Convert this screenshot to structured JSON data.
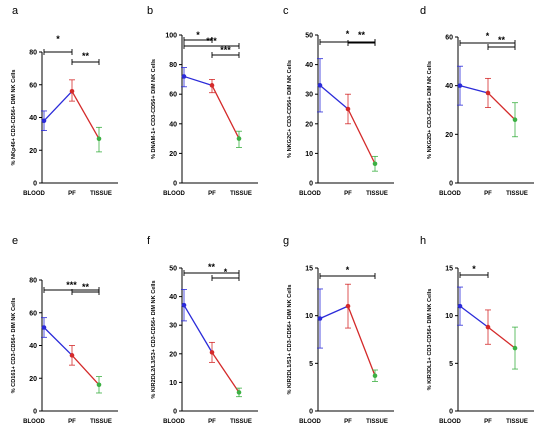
{
  "colors": {
    "blood": "#2b2bd9",
    "pf": "#d42a2a",
    "tissue": "#3cb043",
    "axis": "#000000"
  },
  "chart_data": [
    {
      "type": "line",
      "panel": "a",
      "ylabel": "% NKp46+ CD3-CD56+ DIM NK Cells",
      "categories": [
        "BLOOD",
        "PF",
        "TISSUE"
      ],
      "ylim": [
        0,
        80
      ],
      "yticks": [
        0,
        20,
        40,
        60,
        80
      ],
      "values": [
        38,
        56,
        27
      ],
      "err_upper": [
        44,
        63,
        34
      ],
      "err_lower": [
        32,
        50,
        19
      ],
      "brackets": [
        {
          "from": 0,
          "to": 1,
          "label": "*"
        },
        {
          "from": 1,
          "to": 2,
          "label": "**"
        }
      ]
    },
    {
      "type": "line",
      "panel": "b",
      "ylabel": "% DNAM-1+ CD3-CD56+ DIM NK Cells",
      "categories": [
        "BLOOD",
        "PF",
        "TISSUE"
      ],
      "ylim": [
        0,
        100
      ],
      "yticks": [
        0,
        20,
        40,
        60,
        80,
        100
      ],
      "values": [
        72,
        66,
        30
      ],
      "err_upper": [
        78,
        70,
        35
      ],
      "err_lower": [
        65,
        61,
        24
      ],
      "brackets": [
        {
          "from": 0,
          "to": 2,
          "label": "***"
        },
        {
          "from": 0,
          "to": 1,
          "label": "*"
        },
        {
          "from": 1,
          "to": 2,
          "label": "***"
        }
      ]
    },
    {
      "type": "line",
      "panel": "c",
      "ylabel": "% NKG2C+ CD3-CD56+ DIM NK Cells",
      "categories": [
        "BLOOD",
        "PF",
        "TISSUE"
      ],
      "ylim": [
        0,
        50
      ],
      "yticks": [
        0,
        10,
        20,
        30,
        40,
        50
      ],
      "values": [
        33,
        25,
        6.5
      ],
      "err_upper": [
        42,
        30,
        9
      ],
      "err_lower": [
        24,
        20,
        4
      ],
      "brackets": [
        {
          "from": 0,
          "to": 2,
          "label": "*"
        },
        {
          "from": 1,
          "to": 2,
          "label": "**"
        }
      ]
    },
    {
      "type": "line",
      "panel": "d",
      "ylabel": "% NKG2D+ CD3-CD56+ DIM NK Cells",
      "categories": [
        "BLOOD",
        "PF",
        "TISSUE"
      ],
      "ylim": [
        0,
        60
      ],
      "yticks": [
        0,
        20,
        40,
        60
      ],
      "values": [
        40,
        37,
        26
      ],
      "err_upper": [
        48,
        43,
        33
      ],
      "err_lower": [
        32,
        31,
        19
      ],
      "brackets": [
        {
          "from": 0,
          "to": 2,
          "label": "*"
        },
        {
          "from": 1,
          "to": 2,
          "label": "**"
        }
      ]
    },
    {
      "type": "line",
      "panel": "e",
      "ylabel": "% CD161+ CD3-CD56+ DIM NK Cells",
      "categories": [
        "BLOOD",
        "PF",
        "TISSUE"
      ],
      "ylim": [
        0,
        80
      ],
      "yticks": [
        0,
        20,
        40,
        60,
        80
      ],
      "values": [
        51,
        34,
        16
      ],
      "err_upper": [
        57,
        40,
        21
      ],
      "err_lower": [
        45,
        28,
        11
      ],
      "brackets": [
        {
          "from": 0,
          "to": 2,
          "label": "***"
        },
        {
          "from": 1,
          "to": 2,
          "label": "**"
        }
      ]
    },
    {
      "type": "line",
      "panel": "f",
      "ylabel": "% KIR2DL2/L3/S3+ CD3-CD56+ DIM NK Cells",
      "categories": [
        "BLOOD",
        "PF",
        "TISSUE"
      ],
      "ylim": [
        0,
        50
      ],
      "yticks": [
        0,
        10,
        20,
        30,
        40,
        50
      ],
      "values": [
        37,
        20.5,
        6.5
      ],
      "err_upper": [
        42.5,
        24,
        8
      ],
      "err_lower": [
        31.5,
        17,
        5
      ],
      "brackets": [
        {
          "from": 0,
          "to": 2,
          "label": "**"
        },
        {
          "from": 1,
          "to": 2,
          "label": "*"
        }
      ]
    },
    {
      "type": "line",
      "panel": "g",
      "ylabel": "% KIR2DL1/S1+ CD3-CD56+ DIM NK Cells",
      "categories": [
        "BLOOD",
        "PF",
        "TISSUE"
      ],
      "ylim": [
        0,
        15
      ],
      "yticks": [
        0,
        5,
        10,
        15
      ],
      "values": [
        9.7,
        11,
        3.7
      ],
      "err_upper": [
        12.8,
        13.3,
        4.3
      ],
      "err_lower": [
        6.6,
        8.7,
        3.1
      ],
      "brackets": [
        {
          "from": 0,
          "to": 2,
          "label": "*"
        }
      ]
    },
    {
      "type": "line",
      "panel": "h",
      "ylabel": "% KIR3DL1+ CD3-CD56+ DIM NK Cells",
      "categories": [
        "BLOOD",
        "PF",
        "TISSUE"
      ],
      "ylim": [
        0,
        15
      ],
      "yticks": [
        0,
        5,
        10,
        15
      ],
      "values": [
        11,
        8.8,
        6.6
      ],
      "err_upper": [
        13,
        10.6,
        8.8
      ],
      "err_lower": [
        9,
        7,
        4.4
      ],
      "brackets": [
        {
          "from": 0,
          "to": 1,
          "label": "*"
        }
      ]
    }
  ]
}
